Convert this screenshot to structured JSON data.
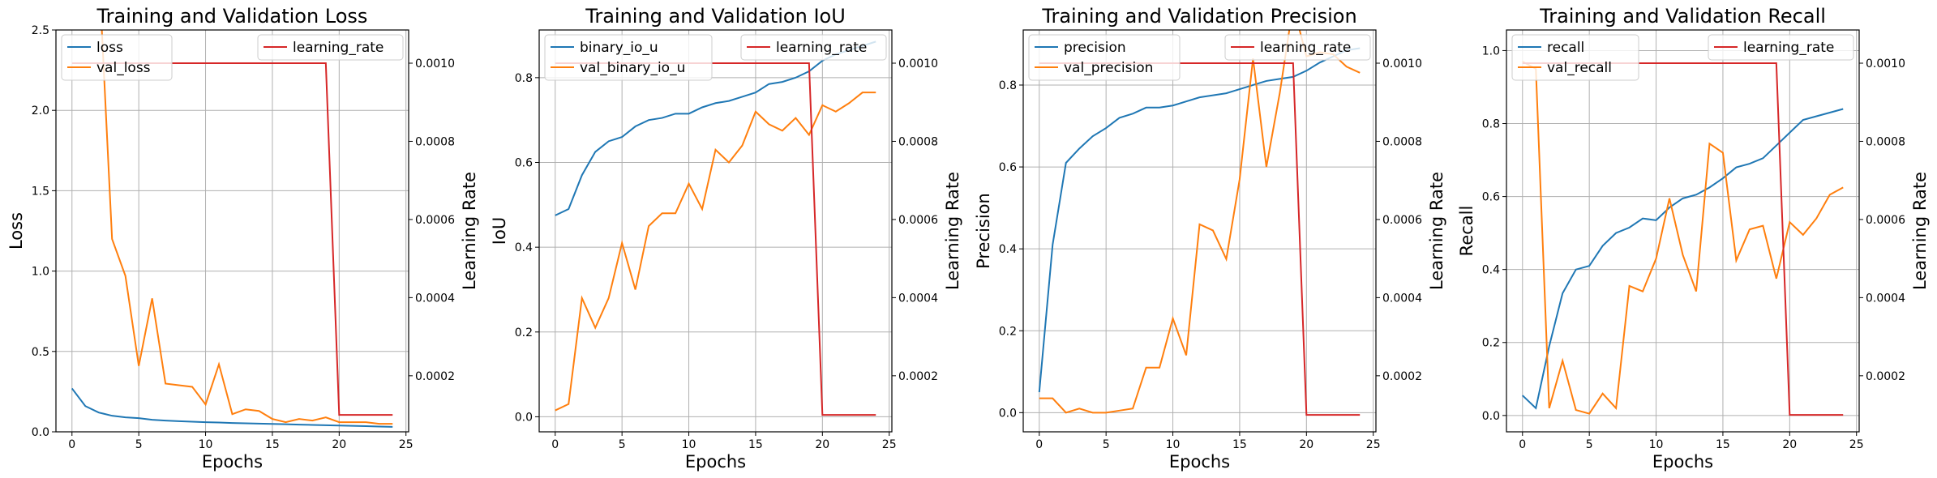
{
  "figure": {
    "x_axis_label": "Epochs",
    "right_axis_label": "Learning Rate",
    "lr_legend_label": "learning_rate",
    "colors": {
      "train": "#1f77b4",
      "val": "#ff7f0e",
      "learning_rate": "#d62728"
    }
  },
  "chart_data": [
    {
      "type": "line",
      "title": "Training and Validation Loss",
      "xlabel": "Epochs",
      "ylabel": "Loss",
      "ylabel_right": "Learning Rate",
      "x": [
        0,
        1,
        2,
        3,
        4,
        5,
        6,
        7,
        8,
        9,
        10,
        11,
        12,
        13,
        14,
        15,
        16,
        17,
        18,
        19,
        20,
        21,
        22,
        23,
        24
      ],
      "xlim": [
        -1.2,
        25.2
      ],
      "xticks": [
        "0",
        "5",
        "10",
        "15",
        "20",
        "25"
      ],
      "ylim": [
        0,
        2.5
      ],
      "yticks": [
        "0.0",
        "0.5",
        "1.0",
        "1.5",
        "2.0",
        "2.5"
      ],
      "y2lim": [
        5.66e-05,
        0.001085
      ],
      "y2ticks": [
        "0.0002",
        "0.0004",
        "0.0006",
        "0.0008",
        "0.0010"
      ],
      "grid": true,
      "legend_position": "upper-left",
      "series": [
        {
          "name": "loss",
          "values": [
            0.27,
            0.16,
            0.12,
            0.1,
            0.09,
            0.085,
            0.075,
            0.07,
            0.066,
            0.063,
            0.06,
            0.058,
            0.055,
            0.053,
            0.051,
            0.049,
            0.047,
            0.045,
            0.043,
            0.041,
            0.039,
            0.037,
            0.035,
            0.033,
            0.031
          ]
        },
        {
          "name": "val_loss",
          "values": [
            null,
            null,
            2.9,
            1.2,
            0.97,
            0.41,
            0.83,
            0.3,
            0.29,
            0.28,
            0.17,
            0.42,
            0.11,
            0.14,
            0.13,
            0.08,
            0.06,
            0.08,
            0.07,
            0.09,
            0.06,
            0.06,
            0.06,
            0.05,
            0.05
          ]
        }
      ],
      "learning_rate": [
        0.001,
        0.001,
        0.001,
        0.001,
        0.001,
        0.001,
        0.001,
        0.001,
        0.001,
        0.001,
        0.001,
        0.001,
        0.001,
        0.001,
        0.001,
        0.001,
        0.001,
        0.001,
        0.001,
        0.001,
        0.0001,
        0.0001,
        0.0001,
        0.0001,
        0.0001
      ]
    },
    {
      "type": "line",
      "title": "Training and Validation IoU",
      "xlabel": "Epochs",
      "ylabel": "IoU",
      "ylabel_right": "Learning Rate",
      "x": [
        0,
        1,
        2,
        3,
        4,
        5,
        6,
        7,
        8,
        9,
        10,
        11,
        12,
        13,
        14,
        15,
        16,
        17,
        18,
        19,
        20,
        21,
        22,
        23,
        24
      ],
      "xlim": [
        -1.2,
        25.2
      ],
      "xticks": [
        "0",
        "5",
        "10",
        "15",
        "20",
        "25"
      ],
      "ylim": [
        -0.0355,
        0.9125
      ],
      "yticks": [
        "0.0",
        "0.2",
        "0.4",
        "0.6",
        "0.8"
      ],
      "y2lim": [
        5.66e-05,
        0.001085
      ],
      "y2ticks": [
        "0.0002",
        "0.0004",
        "0.0006",
        "0.0008",
        "0.0010"
      ],
      "grid": true,
      "legend_position": "upper-left",
      "series": [
        {
          "name": "binary_io_u",
          "values": [
            0.475,
            0.49,
            0.57,
            0.625,
            0.65,
            0.66,
            0.685,
            0.7,
            0.705,
            0.715,
            0.715,
            0.73,
            0.74,
            0.745,
            0.755,
            0.765,
            0.785,
            0.79,
            0.8,
            0.815,
            0.84,
            0.855,
            0.865,
            0.875,
            0.885
          ]
        },
        {
          "name": "val_binary_io_u",
          "values": [
            0.015,
            0.03,
            0.28,
            0.21,
            0.28,
            0.41,
            0.3,
            0.45,
            0.48,
            0.48,
            0.55,
            0.49,
            0.63,
            0.6,
            0.64,
            0.72,
            0.69,
            0.675,
            0.705,
            0.665,
            0.735,
            0.72,
            0.74,
            0.765,
            0.765
          ]
        }
      ],
      "learning_rate": [
        0.001,
        0.001,
        0.001,
        0.001,
        0.001,
        0.001,
        0.001,
        0.001,
        0.001,
        0.001,
        0.001,
        0.001,
        0.001,
        0.001,
        0.001,
        0.001,
        0.001,
        0.001,
        0.001,
        0.001,
        0.0001,
        0.0001,
        0.0001,
        0.0001,
        0.0001
      ]
    },
    {
      "type": "line",
      "title": "Training and Validation Precision",
      "xlabel": "Epochs",
      "ylabel": "Precision",
      "ylabel_right": "Learning Rate",
      "x": [
        0,
        1,
        2,
        3,
        4,
        5,
        6,
        7,
        8,
        9,
        10,
        11,
        12,
        13,
        14,
        15,
        16,
        17,
        18,
        19,
        20,
        21,
        22,
        23,
        24
      ],
      "xlim": [
        -1.2,
        25.2
      ],
      "xticks": [
        "0",
        "5",
        "10",
        "15",
        "20",
        "25"
      ],
      "ylim": [
        -0.0468,
        0.9345
      ],
      "yticks": [
        "0.0",
        "0.2",
        "0.4",
        "0.6",
        "0.8"
      ],
      "y2lim": [
        5.66e-05,
        0.001085
      ],
      "y2ticks": [
        "0.0002",
        "0.0004",
        "0.0006",
        "0.0008",
        "0.0010"
      ],
      "grid": true,
      "legend_position": "upper-left",
      "series": [
        {
          "name": "precision",
          "values": [
            0.05,
            0.41,
            0.61,
            0.645,
            0.675,
            0.695,
            0.72,
            0.73,
            0.745,
            0.745,
            0.75,
            0.76,
            0.77,
            0.775,
            0.78,
            0.79,
            0.8,
            0.81,
            0.815,
            0.82,
            0.835,
            0.855,
            0.87,
            0.885,
            0.89
          ]
        },
        {
          "name": "val_precision",
          "values": [
            0.035,
            0.035,
            0.0,
            0.01,
            0.0,
            0.0,
            0.005,
            0.01,
            0.11,
            0.11,
            0.23,
            0.14,
            0.46,
            0.445,
            0.375,
            0.57,
            0.865,
            0.6,
            0.78,
            0.995,
            0.87,
            0.88,
            0.875,
            0.845,
            0.83
          ]
        }
      ],
      "learning_rate": [
        0.001,
        0.001,
        0.001,
        0.001,
        0.001,
        0.001,
        0.001,
        0.001,
        0.001,
        0.001,
        0.001,
        0.001,
        0.001,
        0.001,
        0.001,
        0.001,
        0.001,
        0.001,
        0.001,
        0.001,
        0.0001,
        0.0001,
        0.0001,
        0.0001,
        0.0001
      ]
    },
    {
      "type": "line",
      "title": "Training and Validation Recall",
      "xlabel": "Epochs",
      "ylabel": "Recall",
      "ylabel_right": "Learning Rate",
      "x": [
        0,
        1,
        2,
        3,
        4,
        5,
        6,
        7,
        8,
        9,
        10,
        11,
        12,
        13,
        14,
        15,
        16,
        17,
        18,
        19,
        20,
        21,
        22,
        23,
        24
      ],
      "xlim": [
        -1.2,
        25.2
      ],
      "xticks": [
        "0",
        "5",
        "10",
        "15",
        "20",
        "25"
      ],
      "ylim": [
        -0.0448,
        1.0565
      ],
      "yticks": [
        "0.0",
        "0.2",
        "0.4",
        "0.6",
        "0.8",
        "1.0"
      ],
      "y2lim": [
        5.66e-05,
        0.001085
      ],
      "y2ticks": [
        "0.0002",
        "0.0004",
        "0.0006",
        "0.0008",
        "0.0010"
      ],
      "grid": true,
      "legend_position": "upper-left",
      "series": [
        {
          "name": "recall",
          "values": [
            0.055,
            0.02,
            0.19,
            0.335,
            0.4,
            0.41,
            0.465,
            0.5,
            0.515,
            0.54,
            0.535,
            0.57,
            0.595,
            0.605,
            0.625,
            0.65,
            0.68,
            0.69,
            0.705,
            0.74,
            0.775,
            0.81,
            0.82,
            0.83,
            0.84
          ]
        },
        {
          "name": "val_recall",
          "values": [
            0.97,
            0.95,
            0.02,
            0.15,
            0.015,
            0.005,
            0.06,
            0.02,
            0.355,
            0.34,
            0.43,
            0.595,
            0.44,
            0.34,
            0.745,
            0.72,
            0.425,
            0.51,
            0.52,
            0.375,
            0.53,
            0.495,
            0.54,
            0.605,
            0.625
          ]
        }
      ],
      "learning_rate": [
        0.001,
        0.001,
        0.001,
        0.001,
        0.001,
        0.001,
        0.001,
        0.001,
        0.001,
        0.001,
        0.001,
        0.001,
        0.001,
        0.001,
        0.001,
        0.001,
        0.001,
        0.001,
        0.001,
        0.001,
        0.0001,
        0.0001,
        0.0001,
        0.0001,
        0.0001
      ]
    }
  ]
}
